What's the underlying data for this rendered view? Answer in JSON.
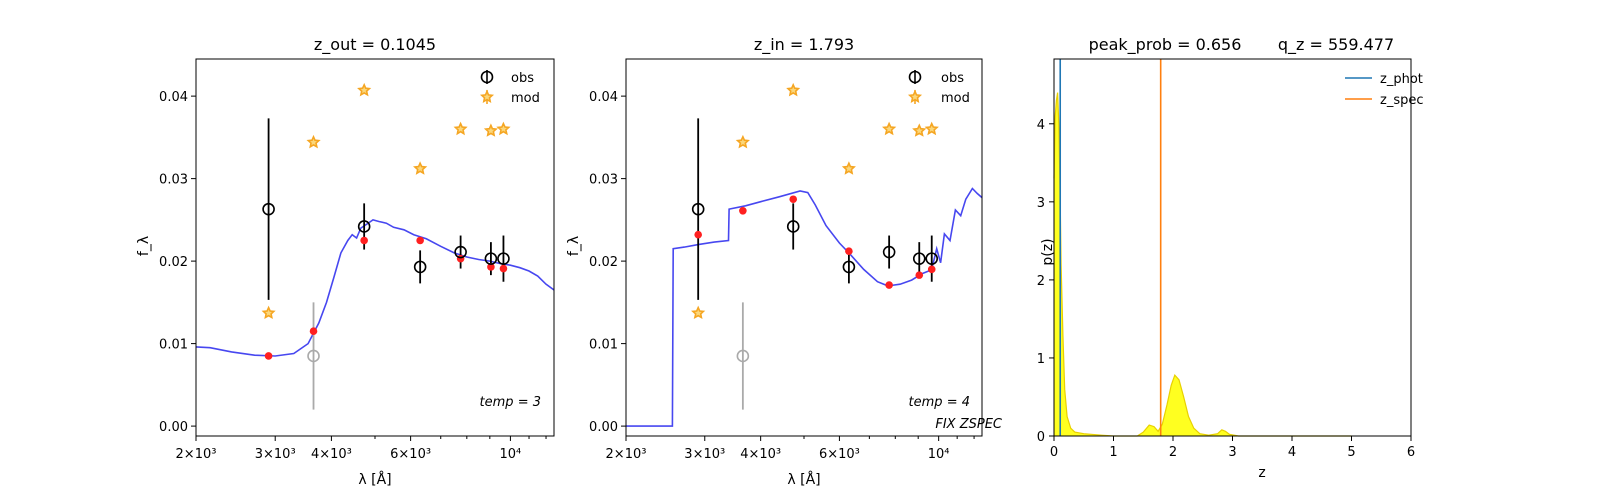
{
  "chart_data": [
    {
      "type": "scatter",
      "title": "z_out = 0.1045",
      "xlabel": "λ [Å]",
      "ylabel": "f_λ",
      "x_scale": "log",
      "xlim": [
        2000,
        12500
      ],
      "ylim": [
        -0.0012,
        0.0445
      ],
      "x_ticks": [
        2000,
        3000,
        4000,
        6000,
        10000
      ],
      "x_tick_labels": [
        "2×10³",
        "3×10³",
        "4×10³",
        "6×10³",
        "10⁴"
      ],
      "y_ticks": [
        0.0,
        0.01,
        0.02,
        0.03,
        0.04
      ],
      "y_tick_labels": [
        "0.00",
        "0.01",
        "0.02",
        "0.03",
        "0.04"
      ],
      "legend": {
        "placement": "top-right",
        "entries": [
          "obs",
          "mod"
        ]
      },
      "annotation": "temp = 3",
      "colors": {
        "obs": "#000000",
        "obs_gray": "#aaaaaa",
        "mod": "#f5a623",
        "model_pts": "#ff2020",
        "sed": "#3333ee"
      },
      "obs": [
        {
          "x": 2900,
          "y": 0.0263,
          "err": 0.011,
          "color": "black"
        },
        {
          "x": 3650,
          "y": 0.0085,
          "err": 0.0065,
          "color": "gray"
        },
        {
          "x": 4730,
          "y": 0.0242,
          "err": 0.0028,
          "color": "black"
        },
        {
          "x": 6300,
          "y": 0.0193,
          "err": 0.002,
          "color": "black"
        },
        {
          "x": 7750,
          "y": 0.0211,
          "err": 0.002,
          "color": "black"
        },
        {
          "x": 9050,
          "y": 0.0203,
          "err": 0.002,
          "color": "black"
        },
        {
          "x": 9650,
          "y": 0.0203,
          "err": 0.0028,
          "color": "black"
        }
      ],
      "mod": [
        {
          "x": 2900,
          "y": 0.0137
        },
        {
          "x": 3650,
          "y": 0.0344
        },
        {
          "x": 4730,
          "y": 0.0407
        },
        {
          "x": 6300,
          "y": 0.0312
        },
        {
          "x": 7750,
          "y": 0.036
        },
        {
          "x": 9050,
          "y": 0.0358
        },
        {
          "x": 9650,
          "y": 0.036
        }
      ],
      "model_points": [
        {
          "x": 2900,
          "y": 0.0085
        },
        {
          "x": 3650,
          "y": 0.0115
        },
        {
          "x": 4730,
          "y": 0.0225
        },
        {
          "x": 6300,
          "y": 0.0225
        },
        {
          "x": 7750,
          "y": 0.0203
        },
        {
          "x": 9050,
          "y": 0.0193
        },
        {
          "x": 9650,
          "y": 0.0191
        }
      ],
      "sed_curve": [
        [
          2000,
          0.0096
        ],
        [
          2150,
          0.0095
        ],
        [
          2400,
          0.009
        ],
        [
          2700,
          0.0086
        ],
        [
          3000,
          0.0085
        ],
        [
          3300,
          0.0088
        ],
        [
          3550,
          0.01
        ],
        [
          3750,
          0.0125
        ],
        [
          3900,
          0.015
        ],
        [
          4050,
          0.018
        ],
        [
          4200,
          0.021
        ],
        [
          4350,
          0.0225
        ],
        [
          4450,
          0.0232
        ],
        [
          4550,
          0.0228
        ],
        [
          4650,
          0.024
        ],
        [
          4800,
          0.0245
        ],
        [
          4950,
          0.025
        ],
        [
          5100,
          0.0248
        ],
        [
          5300,
          0.0246
        ],
        [
          5500,
          0.0241
        ],
        [
          5800,
          0.0238
        ],
        [
          6100,
          0.0232
        ],
        [
          6500,
          0.0227
        ],
        [
          7000,
          0.0218
        ],
        [
          7500,
          0.021
        ],
        [
          8000,
          0.0205
        ],
        [
          8500,
          0.0202
        ],
        [
          9000,
          0.02
        ],
        [
          9500,
          0.0197
        ],
        [
          10000,
          0.0195
        ],
        [
          10500,
          0.0192
        ],
        [
          11000,
          0.0188
        ],
        [
          11500,
          0.0182
        ],
        [
          12000,
          0.0172
        ],
        [
          12500,
          0.0165
        ]
      ]
    },
    {
      "type": "scatter",
      "title": "z_in = 1.793",
      "xlabel": "λ [Å]",
      "ylabel": "f_λ",
      "x_scale": "log",
      "xlim": [
        2000,
        12500
      ],
      "ylim": [
        -0.0012,
        0.0445
      ],
      "x_ticks": [
        2000,
        3000,
        4000,
        6000,
        10000
      ],
      "x_tick_labels": [
        "2×10³",
        "3×10³",
        "4×10³",
        "6×10³",
        "10⁴"
      ],
      "y_ticks": [
        0.0,
        0.01,
        0.02,
        0.03,
        0.04
      ],
      "y_tick_labels": [
        "0.00",
        "0.01",
        "0.02",
        "0.03",
        "0.04"
      ],
      "legend": {
        "placement": "top-right",
        "entries": [
          "obs",
          "mod"
        ]
      },
      "annotation": "temp = 4",
      "annotation2": "FIX ZSPEC",
      "colors": {
        "obs": "#000000",
        "obs_gray": "#aaaaaa",
        "mod": "#f5a623",
        "model_pts": "#ff2020",
        "sed": "#3333ee"
      },
      "obs": [
        {
          "x": 2900,
          "y": 0.0263,
          "err": 0.011,
          "color": "black"
        },
        {
          "x": 3650,
          "y": 0.0085,
          "err": 0.0065,
          "color": "gray"
        },
        {
          "x": 4730,
          "y": 0.0242,
          "err": 0.0028,
          "color": "black"
        },
        {
          "x": 6300,
          "y": 0.0193,
          "err": 0.002,
          "color": "black"
        },
        {
          "x": 7750,
          "y": 0.0211,
          "err": 0.002,
          "color": "black"
        },
        {
          "x": 9050,
          "y": 0.0203,
          "err": 0.002,
          "color": "black"
        },
        {
          "x": 9650,
          "y": 0.0203,
          "err": 0.0028,
          "color": "black"
        }
      ],
      "mod": [
        {
          "x": 2900,
          "y": 0.0137
        },
        {
          "x": 3650,
          "y": 0.0344
        },
        {
          "x": 4730,
          "y": 0.0407
        },
        {
          "x": 6300,
          "y": 0.0312
        },
        {
          "x": 7750,
          "y": 0.036
        },
        {
          "x": 9050,
          "y": 0.0358
        },
        {
          "x": 9650,
          "y": 0.036
        }
      ],
      "model_points": [
        {
          "x": 2900,
          "y": 0.0232
        },
        {
          "x": 3650,
          "y": 0.0261
        },
        {
          "x": 4730,
          "y": 0.0275
        },
        {
          "x": 6300,
          "y": 0.0212
        },
        {
          "x": 7750,
          "y": 0.0171
        },
        {
          "x": 9050,
          "y": 0.0183
        },
        {
          "x": 9650,
          "y": 0.019
        }
      ],
      "sed_curve": [
        [
          2000,
          0.0
        ],
        [
          2540,
          0.0
        ],
        [
          2550,
          0.0215
        ],
        [
          2700,
          0.0217
        ],
        [
          2900,
          0.022
        ],
        [
          3150,
          0.0223
        ],
        [
          3390,
          0.0225
        ],
        [
          3400,
          0.0263
        ],
        [
          3700,
          0.0267
        ],
        [
          4000,
          0.0272
        ],
        [
          4400,
          0.0278
        ],
        [
          4900,
          0.0285
        ],
        [
          5100,
          0.0283
        ],
        [
          5300,
          0.0268
        ],
        [
          5600,
          0.0243
        ],
        [
          6000,
          0.0222
        ],
        [
          6300,
          0.021
        ],
        [
          6800,
          0.019
        ],
        [
          7300,
          0.0175
        ],
        [
          7700,
          0.017
        ],
        [
          8200,
          0.0172
        ],
        [
          8700,
          0.0177
        ],
        [
          9200,
          0.0185
        ],
        [
          9500,
          0.0188
        ],
        [
          9700,
          0.0195
        ],
        [
          9900,
          0.0215
        ],
        [
          10100,
          0.0198
        ],
        [
          10300,
          0.0233
        ],
        [
          10600,
          0.0225
        ],
        [
          10900,
          0.0262
        ],
        [
          11200,
          0.0255
        ],
        [
          11500,
          0.0275
        ],
        [
          11900,
          0.0288
        ],
        [
          12200,
          0.0282
        ],
        [
          12500,
          0.0277
        ]
      ]
    },
    {
      "type": "area",
      "title": "peak_prob = 0.656",
      "title2": "q_z = 559.477",
      "xlabel": "z",
      "ylabel": "p(z)",
      "xlim": [
        0,
        6
      ],
      "ylim": [
        0,
        4.83
      ],
      "x_ticks": [
        0,
        1,
        2,
        3,
        4,
        5,
        6
      ],
      "y_ticks": [
        0,
        1,
        2,
        3,
        4
      ],
      "legend": {
        "placement": "top-right",
        "entries": [
          "z_phot",
          "z_spec"
        ]
      },
      "colors": {
        "pdf_fill": "#ffff20",
        "pdf_line": "#e8d000",
        "z_phot": "#1f77b4",
        "z_spec": "#ff7f0e"
      },
      "z_phot": 0.1045,
      "z_spec": 1.793,
      "pdf": [
        [
          0.0,
          3.3
        ],
        [
          0.02,
          4.1
        ],
        [
          0.04,
          4.3
        ],
        [
          0.06,
          4.4
        ],
        [
          0.08,
          4.0
        ],
        [
          0.1,
          3.2
        ],
        [
          0.12,
          2.2
        ],
        [
          0.15,
          1.3
        ],
        [
          0.18,
          0.6
        ],
        [
          0.22,
          0.25
        ],
        [
          0.28,
          0.1
        ],
        [
          0.35,
          0.05
        ],
        [
          0.5,
          0.03
        ],
        [
          0.8,
          0.01
        ],
        [
          1.0,
          0.0
        ],
        [
          1.4,
          0.0
        ],
        [
          1.5,
          0.05
        ],
        [
          1.6,
          0.14
        ],
        [
          1.68,
          0.12
        ],
        [
          1.75,
          0.06
        ],
        [
          1.82,
          0.15
        ],
        [
          1.9,
          0.4
        ],
        [
          1.97,
          0.65
        ],
        [
          2.03,
          0.78
        ],
        [
          2.1,
          0.72
        ],
        [
          2.18,
          0.5
        ],
        [
          2.26,
          0.25
        ],
        [
          2.35,
          0.1
        ],
        [
          2.45,
          0.03
        ],
        [
          2.6,
          0.01
        ],
        [
          2.75,
          0.03
        ],
        [
          2.82,
          0.08
        ],
        [
          2.88,
          0.06
        ],
        [
          2.95,
          0.02
        ],
        [
          3.1,
          0.0
        ],
        [
          5.0,
          0.0
        ]
      ]
    }
  ]
}
